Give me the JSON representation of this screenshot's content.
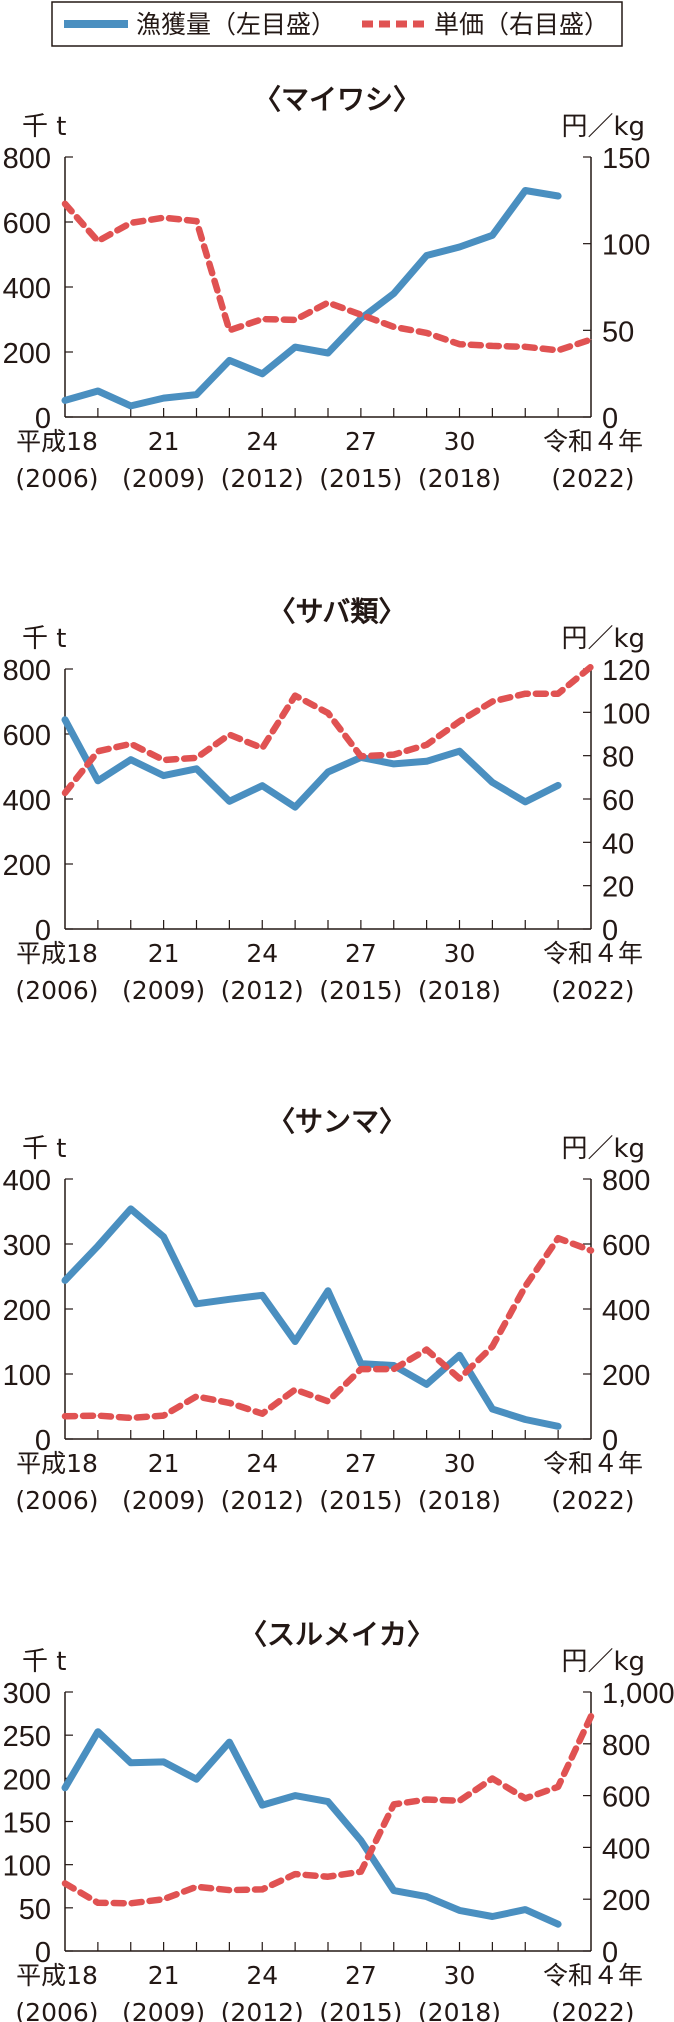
{
  "legend": {
    "catch_label": "漁獲量（左目盛）",
    "price_label": "単価（右目盛）"
  },
  "colors": {
    "catch": "#4a8fc0",
    "price": "#e05252",
    "axis": "#231815"
  },
  "x_labels": [
    {
      "year": 2006,
      "line1": "平成18",
      "line2": "(2006)"
    },
    {
      "year": 2009,
      "line1": "21",
      "line2": "(2009)"
    },
    {
      "year": 2012,
      "line1": "24",
      "line2": "(2012)"
    },
    {
      "year": 2015,
      "line1": "27",
      "line2": "(2015)"
    },
    {
      "year": 2018,
      "line1": "30",
      "line2": "(2018)"
    },
    {
      "year": 2022,
      "line1": "令和４年",
      "line2": "(2022)"
    }
  ],
  "chart_data": [
    {
      "type": "line",
      "title": "〈マイワシ〉",
      "ylabel_left": "千 t",
      "ylabel_right": "円／kg",
      "x": [
        2006,
        2007,
        2008,
        2009,
        2010,
        2011,
        2012,
        2013,
        2014,
        2015,
        2016,
        2017,
        2018,
        2019,
        2020,
        2021,
        2022
      ],
      "ylim_left": [
        0,
        800
      ],
      "yticks_left": [
        "0",
        "200",
        "400",
        "600",
        "800"
      ],
      "ylim_right": [
        0,
        150
      ],
      "yticks_right": [
        "0",
        "50",
        "100",
        "150"
      ],
      "series": [
        {
          "name": "漁獲量（左目盛）",
          "axis": "left",
          "values": [
            51,
            80,
            34,
            58,
            69,
            174,
            133,
            215,
            197,
            303,
            380,
            497,
            523,
            559,
            697,
            680,
            null
          ]
        },
        {
          "name": "単価（右目盛）",
          "axis": "right",
          "values": [
            123,
            101.5,
            112,
            115,
            113,
            50,
            56.5,
            56,
            66,
            59,
            52,
            48.5,
            42,
            41,
            40.5,
            38.5,
            44.7
          ]
        }
      ]
    },
    {
      "type": "line",
      "title": "〈サバ類〉",
      "ylabel_left": "千 t",
      "ylabel_right": "円／kg",
      "x": [
        2006,
        2007,
        2008,
        2009,
        2010,
        2011,
        2012,
        2013,
        2014,
        2015,
        2016,
        2017,
        2018,
        2019,
        2020,
        2021,
        2022
      ],
      "ylim_left": [
        0,
        800
      ],
      "yticks_left": [
        "0",
        "200",
        "400",
        "600",
        "800"
      ],
      "ylim_right": [
        0,
        120
      ],
      "yticks_right": [
        "0",
        "20",
        "40",
        "60",
        "80",
        "100",
        "120"
      ],
      "series": [
        {
          "name": "漁獲量（左目盛）",
          "axis": "left",
          "values": [
            644,
            456,
            521,
            472,
            493,
            393,
            441,
            375,
            483,
            528,
            508,
            516,
            547,
            451,
            391,
            442,
            null
          ]
        },
        {
          "name": "単価（右目盛）",
          "axis": "right",
          "values": [
            62.8,
            82,
            85.5,
            78,
            79,
            89.7,
            83.5,
            107.7,
            99.7,
            79.7,
            80.5,
            85,
            95.8,
            105,
            108.6,
            108.6,
            121
          ]
        }
      ]
    },
    {
      "type": "line",
      "title": "〈サンマ〉",
      "ylabel_left": "千 t",
      "ylabel_right": "円／kg",
      "x": [
        2006,
        2007,
        2008,
        2009,
        2010,
        2011,
        2012,
        2013,
        2014,
        2015,
        2016,
        2017,
        2018,
        2019,
        2020,
        2021,
        2022
      ],
      "ylim_left": [
        0,
        400
      ],
      "yticks_left": [
        "0",
        "100",
        "200",
        "300",
        "400"
      ],
      "ylim_right": [
        0,
        800
      ],
      "yticks_right": [
        "0",
        "200",
        "400",
        "600",
        "800"
      ],
      "series": [
        {
          "name": "漁獲量（左目盛）",
          "axis": "left",
          "values": [
            244,
            297,
            354,
            311,
            208,
            215,
            221,
            150,
            228,
            116,
            113,
            84,
            129,
            46,
            30,
            19.5,
            null
          ]
        },
        {
          "name": "単価（右目盛）",
          "axis": "right",
          "values": [
            70,
            72,
            65,
            72,
            131,
            111,
            78,
            152,
            116,
            215,
            215,
            275,
            186,
            285,
            470,
            618,
            580
          ]
        }
      ]
    },
    {
      "type": "line",
      "title": "〈スルメイカ〉",
      "ylabel_left": "千 t",
      "ylabel_right": "円／kg",
      "x": [
        2006,
        2007,
        2008,
        2009,
        2010,
        2011,
        2012,
        2013,
        2014,
        2015,
        2016,
        2017,
        2018,
        2019,
        2020,
        2021,
        2022
      ],
      "ylim_left": [
        0,
        300
      ],
      "yticks_left": [
        "0",
        "50",
        "100",
        "150",
        "200",
        "250",
        "300"
      ],
      "ylim_right": [
        0,
        1000
      ],
      "yticks_right": [
        "0",
        "200",
        "400",
        "600",
        "800",
        "1,000"
      ],
      "series": [
        {
          "name": "漁獲量（左目盛）",
          "axis": "left",
          "values": [
            189,
            254,
            218,
            219,
            199,
            242,
            169,
            180,
            173,
            128,
            70,
            63,
            47,
            40,
            48,
            31,
            null
          ]
        },
        {
          "name": "単価（右目盛）",
          "axis": "right",
          "values": [
            261,
            186,
            184,
            200,
            248,
            235,
            238,
            297,
            287,
            306,
            566,
            585,
            580,
            666,
            589,
            634,
            906
          ]
        }
      ]
    }
  ]
}
